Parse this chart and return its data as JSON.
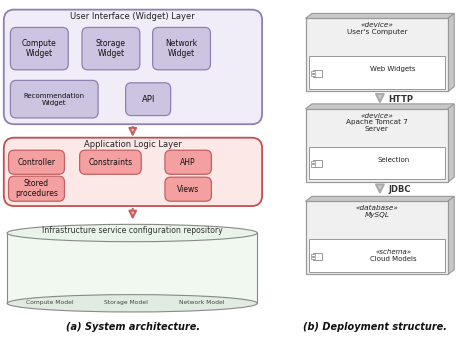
{
  "bg_color": "#ffffff",
  "title_a": "(a) System architecture.",
  "title_b": "(b) Deployment structure.",
  "ui_layer_label": "User Interface (Widget) Layer",
  "ui_bg": "#f0edf8",
  "ui_border": "#9080b0",
  "ui_widget_bg": "#ccc4e0",
  "ui_widget_border": "#9080b0",
  "app_layer_label": "Application Logic Layer",
  "app_bg": "#fde8e8",
  "app_border": "#c05050",
  "app_widget_bg": "#f5a0a0",
  "app_widget_border": "#c06060",
  "infra_label": "Infrastructure service configuration repository",
  "infra_models": [
    "Compute Model",
    "Storage Model",
    "Network Model"
  ],
  "deploy_device1_line1": "«device»",
  "deploy_device1_line2": "User's Computer",
  "deploy_device1_inner": "Web Widgets",
  "arrow1_label": "HTTP",
  "deploy_device2_line1": "«device»",
  "deploy_device2_line2": "Apache Tomcat 7",
  "deploy_device2_line3": "Server",
  "deploy_device2_inner": "Selection",
  "arrow2_label": "JDBC",
  "deploy_device3_line1": "«database»",
  "deploy_device3_line2": "MySQL",
  "deploy_device3_inner1": "«schema»",
  "deploy_device3_inner2": "Cloud Models",
  "box_face": "#f0f0f0",
  "box_shadow": "#c8c8c8",
  "box_border": "#999999"
}
